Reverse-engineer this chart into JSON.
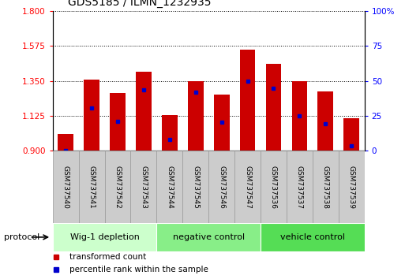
{
  "title": "GDS5185 / ILMN_1232935",
  "samples": [
    "GSM737540",
    "GSM737541",
    "GSM737542",
    "GSM737543",
    "GSM737544",
    "GSM737545",
    "GSM737546",
    "GSM737547",
    "GSM737536",
    "GSM737537",
    "GSM737538",
    "GSM737539"
  ],
  "bar_heights": [
    1.01,
    1.36,
    1.27,
    1.41,
    1.13,
    1.35,
    1.26,
    1.55,
    1.46,
    1.35,
    1.28,
    1.11
  ],
  "blue_dot_values": [
    0.9,
    1.175,
    1.09,
    1.29,
    0.97,
    1.275,
    1.085,
    1.35,
    1.3,
    1.125,
    1.075,
    0.93
  ],
  "bar_bottom": 0.9,
  "ylim_left": [
    0.9,
    1.8
  ],
  "ylim_right": [
    0,
    100
  ],
  "yticks_left": [
    0.9,
    1.125,
    1.35,
    1.575,
    1.8
  ],
  "yticks_right": [
    0,
    25,
    50,
    75,
    100
  ],
  "bar_color": "#cc0000",
  "dot_color": "#0000cc",
  "protocol_groups": [
    {
      "label": "Wig-1 depletion",
      "indices": [
        0,
        1,
        2,
        3
      ],
      "color": "#ccffcc"
    },
    {
      "label": "negative control",
      "indices": [
        4,
        5,
        6,
        7
      ],
      "color": "#88ee88"
    },
    {
      "label": "vehicle control",
      "indices": [
        8,
        9,
        10,
        11
      ],
      "color": "#55dd55"
    }
  ],
  "protocol_label": "protocol",
  "legend": [
    {
      "label": "transformed count",
      "color": "#cc0000"
    },
    {
      "label": "percentile rank within the sample",
      "color": "#0000cc"
    }
  ],
  "bar_width": 0.6,
  "background_color": "#ffffff",
  "sample_cell_color": "#cccccc",
  "sample_cell_border": "#999999"
}
